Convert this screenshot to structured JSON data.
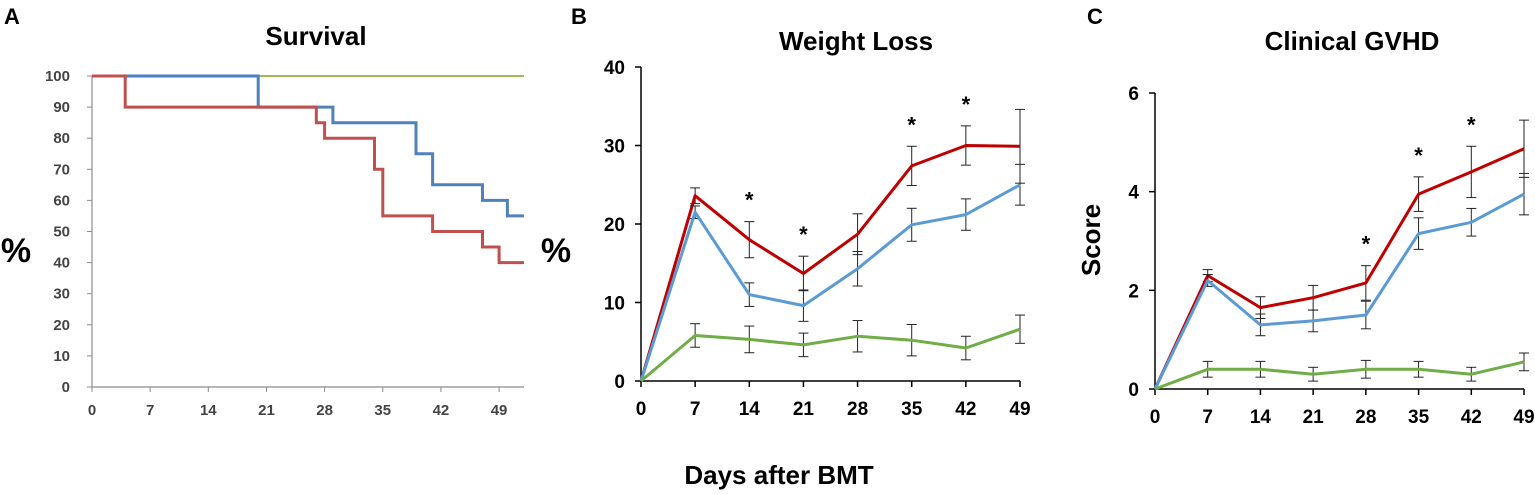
{
  "shared_xlabel": "Days after BMT",
  "colors": {
    "red": "#c0504d",
    "blue": "#4f81bd",
    "green": "#9bbb59",
    "dark_red": "#c00000",
    "light_blue": "#5b9bd5",
    "green_b": "#70ad47"
  },
  "chart_data": [
    {
      "panel": "A",
      "type": "line",
      "subtype": "step",
      "title": "Survival",
      "ylabel": "%",
      "xlabel": "",
      "xlim": [
        0,
        52
      ],
      "ylim": [
        0,
        100
      ],
      "xticks": [
        0,
        7,
        14,
        21,
        28,
        35,
        42,
        49
      ],
      "yticks": [
        0,
        10,
        20,
        30,
        40,
        50,
        60,
        70,
        80,
        90,
        100
      ],
      "series": [
        {
          "name": "green",
          "color": "#9bbb59",
          "x": [
            0,
            52
          ],
          "y": [
            100,
            100
          ]
        },
        {
          "name": "blue",
          "color": "#4f81bd",
          "x": [
            0,
            20,
            20,
            29,
            29,
            39,
            39,
            41,
            41,
            47,
            47,
            50,
            50,
            52
          ],
          "y": [
            100,
            100,
            90,
            90,
            85,
            85,
            75,
            75,
            65,
            65,
            60,
            60,
            55,
            55
          ]
        },
        {
          "name": "red",
          "color": "#c0504d",
          "x": [
            0,
            4,
            4,
            27,
            27,
            28,
            28,
            34,
            34,
            35,
            35,
            41,
            41,
            47,
            47,
            49,
            49,
            52
          ],
          "y": [
            100,
            100,
            90,
            90,
            85,
            85,
            80,
            80,
            70,
            70,
            55,
            55,
            50,
            50,
            45,
            45,
            40,
            40
          ]
        }
      ]
    },
    {
      "panel": "B",
      "type": "line",
      "title": "Weight Loss",
      "ylabel": "%",
      "xlabel": "Days after BMT",
      "ylim": [
        0,
        40
      ],
      "yticks": [
        0,
        10,
        20,
        30,
        40
      ],
      "x": [
        0,
        7,
        14,
        21,
        28,
        35,
        42,
        49
      ],
      "series": [
        {
          "name": "red",
          "color": "#c00000",
          "values": [
            0,
            23.6,
            18.0,
            13.7,
            18.7,
            27.4,
            30.0,
            29.9
          ],
          "errors": [
            0,
            1.0,
            2.3,
            2.2,
            2.6,
            2.5,
            2.5,
            4.7
          ]
        },
        {
          "name": "blue",
          "color": "#5b9bd5",
          "values": [
            0,
            21.5,
            11.0,
            9.6,
            14.3,
            19.9,
            21.2,
            25.0
          ],
          "errors": [
            0,
            0.8,
            1.5,
            2.0,
            2.2,
            2.1,
            2.0,
            2.6
          ]
        },
        {
          "name": "green",
          "color": "#70ad47",
          "values": [
            0,
            5.8,
            5.3,
            4.6,
            5.7,
            5.2,
            4.2,
            6.6
          ],
          "errors": [
            0,
            1.5,
            1.7,
            1.5,
            2.0,
            2.0,
            1.5,
            1.8
          ]
        }
      ],
      "significance_days": [
        14,
        21,
        35,
        42
      ],
      "significance_label": "*"
    },
    {
      "panel": "C",
      "type": "line",
      "title": "Clinical GVHD",
      "ylabel": "Score",
      "xlabel": "",
      "ylim": [
        0,
        6
      ],
      "yticks": [
        0,
        2,
        4,
        6
      ],
      "x": [
        0,
        7,
        14,
        21,
        28,
        35,
        42,
        49
      ],
      "series": [
        {
          "name": "red",
          "color": "#c00000",
          "values": [
            0,
            2.3,
            1.65,
            1.85,
            2.15,
            3.95,
            4.4,
            4.87
          ],
          "errors": [
            0,
            0.12,
            0.22,
            0.25,
            0.35,
            0.35,
            0.52,
            0.58
          ]
        },
        {
          "name": "blue",
          "color": "#5b9bd5",
          "values": [
            0,
            2.2,
            1.3,
            1.38,
            1.5,
            3.15,
            3.38,
            3.95
          ],
          "errors": [
            0,
            0.12,
            0.22,
            0.22,
            0.28,
            0.32,
            0.28,
            0.42
          ]
        },
        {
          "name": "green",
          "color": "#70ad47",
          "values": [
            0,
            0.4,
            0.4,
            0.3,
            0.4,
            0.4,
            0.3,
            0.55
          ],
          "errors": [
            0,
            0.16,
            0.16,
            0.14,
            0.18,
            0.16,
            0.14,
            0.18
          ]
        }
      ],
      "significance_days": [
        28,
        35,
        42
      ],
      "significance_label": "*"
    }
  ]
}
